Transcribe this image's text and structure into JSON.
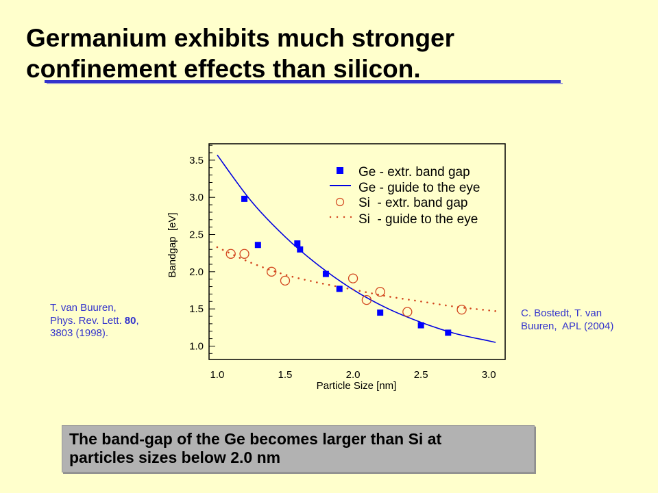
{
  "slide": {
    "title_lines": [
      "Germanium exhibits much stronger",
      "confinement effects than silicon."
    ],
    "background_color": "#FFFFCC",
    "accent_color": "#3333CC"
  },
  "citations": {
    "left": {
      "authors": "T. van Buuren,",
      "journal": "Phys. Rev. Lett.",
      "volume": "80",
      "volume_suffix": ",",
      "pages_year": "3803 (1998)."
    },
    "right": {
      "line1": "C. Bostedt, T. van",
      "line2": "Buuren,  APL (2004)"
    }
  },
  "summary": {
    "lines": [
      "The band-gap of the Ge becomes larger than Si at",
      "particles sizes below 2.0 nm"
    ],
    "box_color": "#B2B2B2"
  },
  "chart_data": {
    "type": "scatter",
    "xlabel": "Particle Size [nm]",
    "ylabel": "Bandgap  [eV]",
    "xlim": [
      0.94,
      3.12
    ],
    "ylim": [
      0.82,
      3.72
    ],
    "xticks": [
      1.0,
      1.5,
      2.0,
      2.5,
      3.0
    ],
    "xtick_labels": [
      "1.0",
      "1.5",
      "2.0",
      "2.5",
      "3.0"
    ],
    "yticks": [
      1.0,
      1.5,
      2.0,
      2.5,
      3.0,
      3.5
    ],
    "ytick_labels": [
      "1.0",
      "1.5",
      "2.0",
      "2.5",
      "3.0",
      "3.5"
    ],
    "grid": false,
    "legend_position": "upper-right",
    "series": [
      {
        "name": "Ge - extr. band gap",
        "kind": "points",
        "marker": "filled-square",
        "color": "#0000FF",
        "x": [
          1.2,
          1.3,
          1.59,
          1.61,
          1.8,
          1.9,
          2.2,
          2.5,
          2.7
        ],
        "y": [
          2.98,
          2.36,
          2.38,
          2.3,
          1.97,
          1.77,
          1.45,
          1.28,
          1.18
        ]
      },
      {
        "name": "Ge - guide to the eye",
        "kind": "line",
        "line_style": "solid",
        "color": "#0000E0",
        "x": [
          1.0,
          1.25,
          1.5,
          1.75,
          2.0,
          2.25,
          2.5,
          2.75,
          3.0,
          3.05
        ],
        "y": [
          3.57,
          2.95,
          2.47,
          2.08,
          1.76,
          1.51,
          1.32,
          1.17,
          1.07,
          1.05
        ]
      },
      {
        "name": "Si  - extr. band gap",
        "kind": "points",
        "marker": "open-circle",
        "color": "#D2461E",
        "x": [
          1.1,
          1.2,
          1.4,
          1.5,
          2.0,
          2.1,
          2.2,
          2.4,
          2.8
        ],
        "y": [
          2.24,
          2.24,
          2.0,
          1.88,
          1.91,
          1.62,
          1.73,
          1.46,
          1.49
        ]
      },
      {
        "name": "Si  - guide to the eye",
        "kind": "line",
        "line_style": "dotted",
        "color": "#D2461E",
        "x": [
          1.0,
          1.25,
          1.5,
          1.75,
          2.0,
          2.25,
          2.5,
          2.75,
          3.0,
          3.05
        ],
        "y": [
          2.33,
          2.12,
          1.96,
          1.85,
          1.76,
          1.67,
          1.6,
          1.53,
          1.48,
          1.47
        ]
      }
    ]
  }
}
